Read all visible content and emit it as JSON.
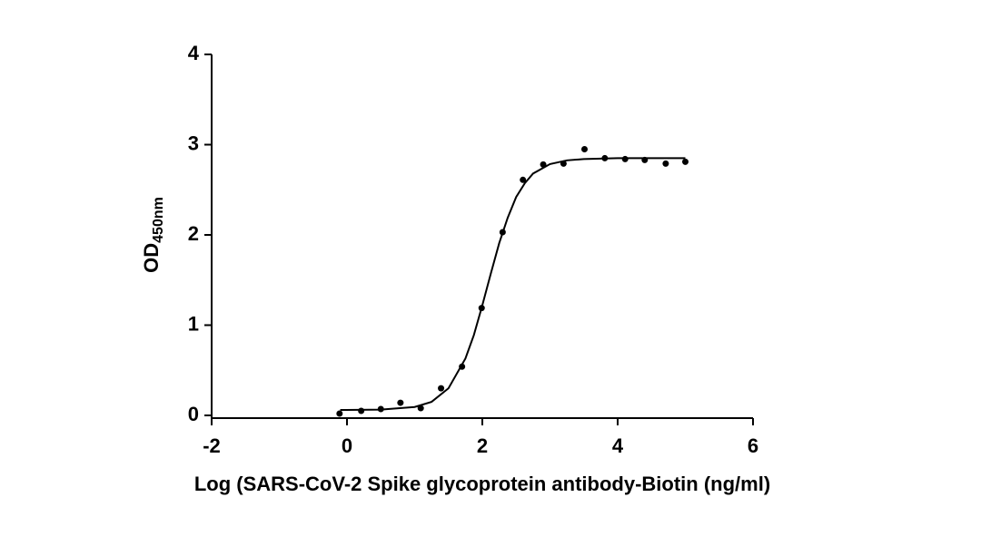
{
  "chart_data": {
    "type": "scatter",
    "x_label": "Log (SARS-CoV-2 Spike glycoprotein antibody-Biotin (ng/ml)",
    "y_label": "OD",
    "y_label_subscript": "450nm",
    "xlim": [
      -2,
      6
    ],
    "ylim": [
      0,
      4
    ],
    "xticks": [
      -2,
      0,
      2,
      4,
      6
    ],
    "yticks": [
      0,
      1,
      2,
      3,
      4
    ],
    "series": [
      {
        "style": "markers",
        "color": "#000000",
        "x": [
          -0.11,
          0.21,
          0.5,
          0.79,
          1.09,
          1.39,
          1.7,
          1.99,
          2.3,
          2.6,
          2.9,
          3.2,
          3.51,
          3.81,
          4.11,
          4.4,
          4.71,
          5.0
        ],
        "values": [
          0.02,
          0.05,
          0.07,
          0.14,
          0.08,
          0.3,
          0.54,
          1.19,
          2.03,
          2.61,
          2.78,
          2.79,
          2.95,
          2.85,
          2.84,
          2.83,
          2.79,
          2.81
        ]
      },
      {
        "style": "line",
        "color": "#000000",
        "x": [
          -0.1,
          0.5,
          1.0,
          1.25,
          1.5,
          1.75,
          1.875,
          2.0,
          2.125,
          2.25,
          2.375,
          2.5,
          2.625,
          2.75,
          3.0,
          3.25,
          3.5,
          4.0,
          5.0
        ],
        "values": [
          0.06,
          0.064,
          0.093,
          0.15,
          0.3,
          0.63,
          0.89,
          1.22,
          1.57,
          1.91,
          2.19,
          2.42,
          2.57,
          2.68,
          2.785,
          2.826,
          2.84,
          2.85,
          2.85
        ]
      }
    ]
  }
}
